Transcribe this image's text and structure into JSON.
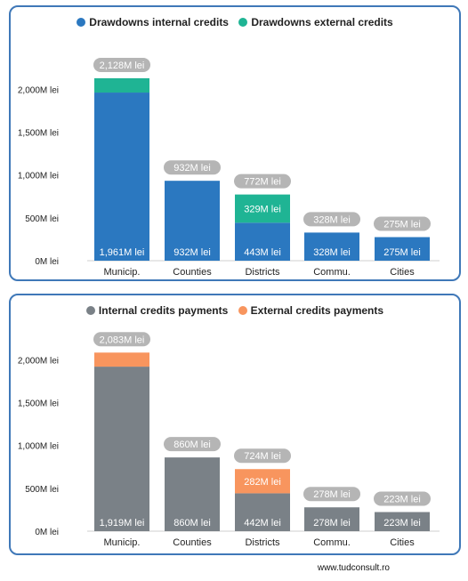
{
  "chart_data": [
    {
      "type": "bar",
      "stacked": true,
      "categories": [
        "Municip.",
        "Counties",
        "Districts",
        "Commu.",
        "Cities"
      ],
      "series": [
        {
          "name": "Drawdowns internal credits",
          "color": "#2b78c0",
          "values": [
            1961,
            932,
            443,
            328,
            275
          ],
          "labels": [
            "1,961M lei",
            "932M lei",
            "443M lei",
            "328M lei",
            "275M lei"
          ]
        },
        {
          "name": "Drawdowns external credits",
          "color": "#1fb494",
          "values": [
            167,
            0,
            329,
            0,
            0
          ],
          "labels": [
            "",
            "",
            "329M lei",
            "",
            ""
          ]
        }
      ],
      "totals": [
        2128,
        932,
        772,
        328,
        275
      ],
      "total_labels": [
        "2,128M lei",
        "932M lei",
        "772M lei",
        "328M lei",
        "275M lei"
      ],
      "yticks": [
        0,
        500,
        1000,
        1500,
        2000
      ],
      "ytick_labels": [
        "0M lei",
        "500M lei",
        "1,000M lei",
        "1,500M lei",
        "2,000M lei"
      ],
      "ylim": [
        0,
        2200
      ],
      "grid": false,
      "legend_position": "top"
    },
    {
      "type": "bar",
      "stacked": true,
      "categories": [
        "Municip.",
        "Counties",
        "Districts",
        "Commu.",
        "Cities"
      ],
      "series": [
        {
          "name": "Internal credits payments",
          "color": "#7a8187",
          "values": [
            1919,
            860,
            442,
            278,
            223
          ],
          "labels": [
            "1,919M lei",
            "860M lei",
            "442M lei",
            "278M lei",
            "223M lei"
          ]
        },
        {
          "name": "External credits payments",
          "color": "#f8955e",
          "values": [
            164,
            0,
            282,
            0,
            0
          ],
          "labels": [
            "",
            "",
            "282M lei",
            "",
            ""
          ]
        }
      ],
      "totals": [
        2083,
        860,
        724,
        278,
        223
      ],
      "total_labels": [
        "2,083M lei",
        "860M lei",
        "724M lei",
        "278M lei",
        "223M lei"
      ],
      "yticks": [
        0,
        500,
        1000,
        1500,
        2000
      ],
      "ytick_labels": [
        "0M lei",
        "500M lei",
        "1,000M lei",
        "1,500M lei",
        "2,000M lei"
      ],
      "ylim": [
        0,
        2200
      ],
      "grid": false,
      "legend_position": "top"
    }
  ],
  "footer": {
    "source": "www.tudconsult.ro"
  }
}
